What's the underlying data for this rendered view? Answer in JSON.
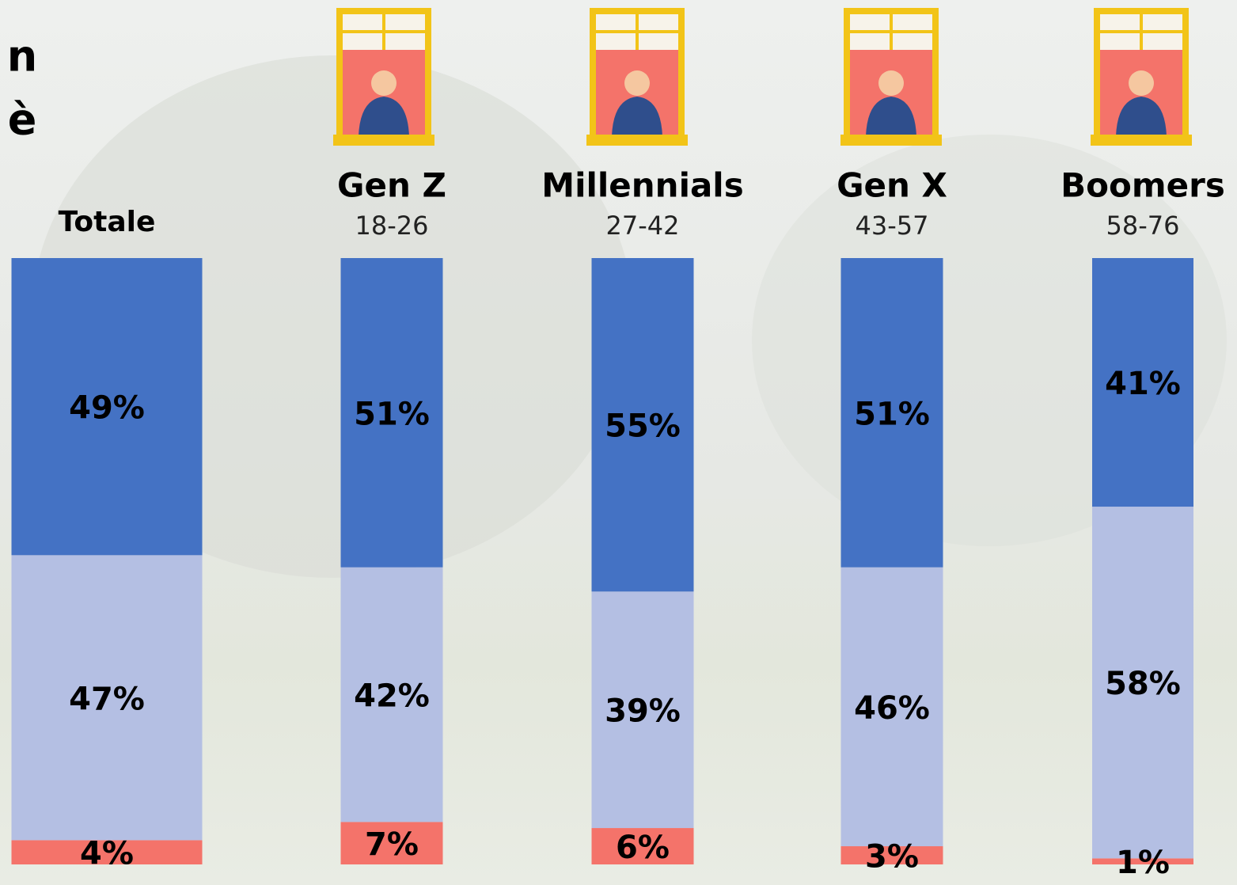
{
  "title_fragments": [
    "n",
    "è"
  ],
  "chart_data": {
    "type": "stacked-bar",
    "categories": [
      "Totale",
      "Gen Z",
      "Millennials",
      "Gen X",
      "Boomers"
    ],
    "age_ranges": [
      null,
      "18-26",
      "27-42",
      "43-57",
      "58-76"
    ],
    "ylim": [
      0,
      100
    ],
    "series": [
      {
        "color": "#4472c4",
        "values": [
          49,
          51,
          55,
          51,
          41
        ],
        "value_labels": [
          "49%",
          "51%",
          "55%",
          "51%",
          "41%"
        ]
      },
      {
        "color": "#b4bfe3",
        "values": [
          47,
          42,
          39,
          46,
          58
        ],
        "value_labels": [
          "47%",
          "42%",
          "39%",
          "46%",
          "58%"
        ]
      },
      {
        "color": "#f4736a",
        "values": [
          4,
          7,
          6,
          3,
          1
        ],
        "value_labels": [
          "4%",
          "7%",
          "6%",
          "3%",
          "1%"
        ]
      }
    ]
  }
}
